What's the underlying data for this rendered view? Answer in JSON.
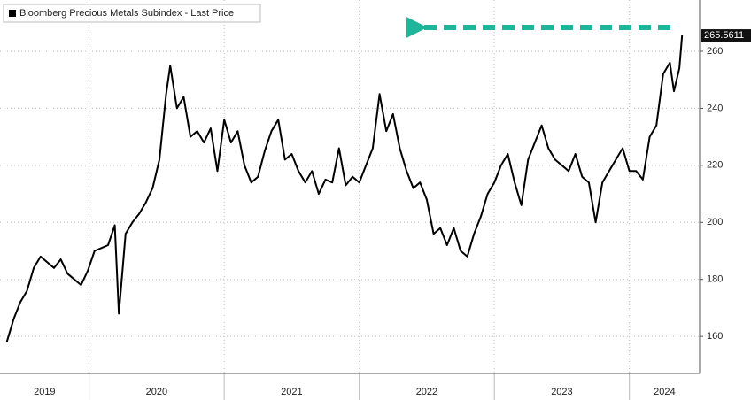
{
  "chart_data": {
    "type": "line",
    "series": [
      {
        "name": "Bloomberg Precious Metals Subindex - Last Price",
        "color": "#000000",
        "x": [
          2019.39,
          2019.44,
          2019.49,
          2019.54,
          2019.59,
          2019.64,
          2019.69,
          2019.74,
          2019.79,
          2019.84,
          2019.89,
          2019.94,
          2019.99,
          2020.04,
          2020.09,
          2020.14,
          2020.19,
          2020.22,
          2020.27,
          2020.32,
          2020.37,
          2020.42,
          2020.47,
          2020.52,
          2020.57,
          2020.6,
          2020.65,
          2020.7,
          2020.75,
          2020.8,
          2020.85,
          2020.9,
          2020.95,
          2021.0,
          2021.05,
          2021.1,
          2021.15,
          2021.2,
          2021.25,
          2021.3,
          2021.35,
          2021.4,
          2021.45,
          2021.5,
          2021.55,
          2021.6,
          2021.65,
          2021.7,
          2021.75,
          2021.8,
          2021.85,
          2021.9,
          2021.95,
          2022.0,
          2022.05,
          2022.1,
          2022.15,
          2022.2,
          2022.25,
          2022.3,
          2022.35,
          2022.4,
          2022.45,
          2022.5,
          2022.55,
          2022.6,
          2022.65,
          2022.7,
          2022.75,
          2022.8,
          2022.85,
          2022.9,
          2022.95,
          2023.0,
          2023.05,
          2023.1,
          2023.15,
          2023.2,
          2023.25,
          2023.3,
          2023.35,
          2023.4,
          2023.45,
          2023.5,
          2023.55,
          2023.6,
          2023.65,
          2023.7,
          2023.75,
          2023.8,
          2023.85,
          2023.9,
          2023.95,
          2024.0,
          2024.05,
          2024.1,
          2024.15,
          2024.2,
          2024.25,
          2024.3,
          2024.33,
          2024.37,
          2024.39
        ],
        "values": [
          158,
          166,
          172,
          176,
          184,
          188,
          186,
          184,
          187,
          182,
          180,
          178,
          183,
          190,
          191,
          192,
          199,
          168,
          196,
          200,
          203,
          207,
          212,
          222,
          245,
          255,
          240,
          244,
          230,
          232,
          228,
          233,
          218,
          236,
          228,
          232,
          220,
          214,
          216,
          225,
          232,
          236,
          222,
          224,
          218,
          214,
          218,
          210,
          215,
          214,
          226,
          213,
          216,
          214,
          220,
          226,
          245,
          232,
          238,
          226,
          218,
          212,
          214,
          208,
          196,
          198,
          192,
          198,
          190,
          188,
          196,
          202,
          210,
          214,
          220,
          224,
          214,
          206,
          222,
          228,
          234,
          226,
          222,
          220,
          218,
          224,
          216,
          214,
          200,
          214,
          218,
          222,
          226,
          218,
          218,
          215,
          230,
          234,
          252,
          256,
          246,
          254,
          265.5611
        ],
        "last_label": "265.5611"
      }
    ],
    "xlim": [
      2019.34,
      2024.52
    ],
    "xticks": [
      {
        "value": 2019.67,
        "label": "2019"
      },
      {
        "value": 2020.5,
        "label": "2020"
      },
      {
        "value": 2021.5,
        "label": "2021"
      },
      {
        "value": 2022.5,
        "label": "2022"
      },
      {
        "value": 2023.5,
        "label": "2023"
      },
      {
        "value": 2024.26,
        "label": "2024"
      }
    ],
    "xdividers": [
      2020,
      2021,
      2022,
      2023,
      2024
    ],
    "ylim": [
      147,
      278
    ],
    "yticks": [
      160,
      180,
      200,
      220,
      240,
      260
    ],
    "grid": true
  }
}
